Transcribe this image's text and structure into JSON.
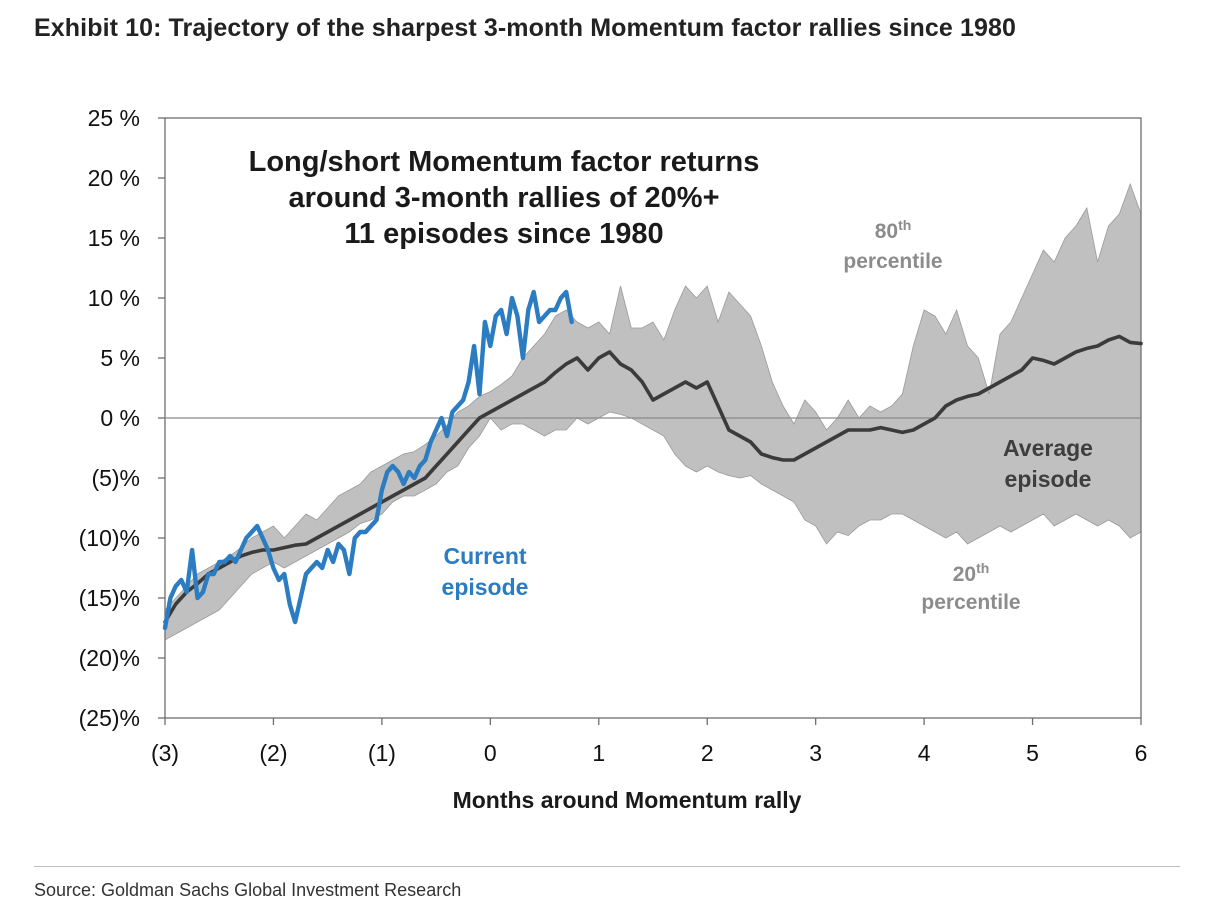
{
  "title": "Exhibit 10: Trajectory of the sharpest 3-month Momentum factor rallies since 1980",
  "source": "Source: Goldman Sachs Global Investment Research",
  "chart_data": {
    "type": "area",
    "xlabel": "Months around Momentum rally",
    "ylabel": "",
    "xlim": [
      -3,
      6
    ],
    "ylim": [
      -25,
      25
    ],
    "x_ticks": [
      -3,
      -2,
      -1,
      0,
      1,
      2,
      3,
      4,
      5,
      6
    ],
    "x_tick_labels": [
      "(3)",
      "(2)",
      "(1)",
      "0",
      "1",
      "2",
      "3",
      "4",
      "5",
      "6"
    ],
    "y_ticks": [
      25,
      20,
      15,
      10,
      5,
      0,
      -5,
      -10,
      -15,
      -20,
      -25
    ],
    "y_tick_labels": [
      "25 %",
      "20 %",
      "15 %",
      "10 %",
      "5 %",
      "0 %",
      "(5)%",
      "(10)%",
      "(15)%",
      "(20)%",
      "(25)%"
    ],
    "grid": false,
    "zero_line": true,
    "annotations": {
      "headline": [
        "Long/short Momentum factor returns",
        "around 3-month rallies of 20%+",
        "11 episodes since 1980"
      ],
      "p80": {
        "main": "80",
        "sup": "th",
        "rest": "percentile"
      },
      "p20": {
        "main": "20",
        "sup": "th",
        "rest": "percentile"
      },
      "average": [
        "Average",
        "episode"
      ],
      "current": [
        "Current",
        "episode"
      ]
    },
    "colors": {
      "band": "#c0c0c0",
      "average": "#3b3b3b",
      "current": "#2b7cc0",
      "axis": "#555555"
    },
    "series": [
      {
        "name": "80th percentile",
        "x": [
          -3,
          -2.9,
          -2.8,
          -2.7,
          -2.6,
          -2.5,
          -2.4,
          -2.3,
          -2.2,
          -2.1,
          -2,
          -1.9,
          -1.8,
          -1.7,
          -1.6,
          -1.5,
          -1.4,
          -1.3,
          -1.2,
          -1.1,
          -1,
          -0.9,
          -0.8,
          -0.7,
          -0.6,
          -0.5,
          -0.4,
          -0.3,
          -0.2,
          -0.1,
          0,
          0.1,
          0.2,
          0.3,
          0.4,
          0.5,
          0.6,
          0.7,
          0.8,
          0.9,
          1,
          1.1,
          1.2,
          1.3,
          1.4,
          1.5,
          1.6,
          1.7,
          1.8,
          1.9,
          2,
          2.1,
          2.2,
          2.3,
          2.4,
          2.5,
          2.6,
          2.7,
          2.8,
          2.9,
          3,
          3.1,
          3.2,
          3.3,
          3.4,
          3.5,
          3.6,
          3.7,
          3.8,
          3.9,
          4,
          4.1,
          4.2,
          4.3,
          4.4,
          4.5,
          4.6,
          4.7,
          4.8,
          4.9,
          5,
          5.1,
          5.2,
          5.3,
          5.4,
          5.5,
          5.6,
          5.7,
          5.8,
          5.9,
          6
        ],
        "values": [
          -16.0,
          -15.0,
          -14.0,
          -13.0,
          -12.5,
          -12.0,
          -11.5,
          -10.8,
          -10.0,
          -9.5,
          -9.0,
          -10.0,
          -9.0,
          -8.0,
          -8.5,
          -7.5,
          -6.5,
          -6.0,
          -5.5,
          -4.5,
          -4.0,
          -3.5,
          -3.0,
          -2.8,
          -2.2,
          -1.5,
          -0.6,
          0.5,
          1.0,
          1.8,
          2.2,
          2.8,
          3.5,
          5.0,
          6.0,
          7.0,
          8.5,
          9.0,
          8.0,
          7.5,
          8.0,
          7.0,
          11.0,
          7.5,
          7.5,
          8.0,
          6.5,
          9.0,
          11.0,
          10.0,
          11.0,
          8.0,
          10.5,
          9.5,
          8.5,
          6.0,
          3.0,
          1.0,
          -0.5,
          1.5,
          0.5,
          -1.0,
          0.0,
          1.5,
          0.0,
          1.0,
          0.5,
          1.0,
          2.0,
          6.0,
          9.0,
          8.5,
          7.0,
          9.0,
          6.0,
          5.0,
          2.0,
          7.0,
          8.0,
          10.0,
          12.0,
          14.0,
          13.0,
          15.0,
          16.0,
          17.5,
          13.0,
          16.0,
          17.0,
          19.5,
          17.0
        ]
      },
      {
        "name": "20th percentile",
        "x": [
          -3,
          -2.9,
          -2.8,
          -2.7,
          -2.6,
          -2.5,
          -2.4,
          -2.3,
          -2.2,
          -2.1,
          -2,
          -1.9,
          -1.8,
          -1.7,
          -1.6,
          -1.5,
          -1.4,
          -1.3,
          -1.2,
          -1.1,
          -1,
          -0.9,
          -0.8,
          -0.7,
          -0.6,
          -0.5,
          -0.4,
          -0.3,
          -0.2,
          -0.1,
          0,
          0.1,
          0.2,
          0.3,
          0.4,
          0.5,
          0.6,
          0.7,
          0.8,
          0.9,
          1,
          1.1,
          1.2,
          1.3,
          1.4,
          1.5,
          1.6,
          1.7,
          1.8,
          1.9,
          2,
          2.1,
          2.2,
          2.3,
          2.4,
          2.5,
          2.6,
          2.7,
          2.8,
          2.9,
          3,
          3.1,
          3.2,
          3.3,
          3.4,
          3.5,
          3.6,
          3.7,
          3.8,
          3.9,
          4,
          4.1,
          4.2,
          4.3,
          4.4,
          4.5,
          4.6,
          4.7,
          4.8,
          4.9,
          5,
          5.1,
          5.2,
          5.3,
          5.4,
          5.5,
          5.6,
          5.7,
          5.8,
          5.9,
          6
        ],
        "values": [
          -18.5,
          -18.0,
          -17.5,
          -17.0,
          -16.5,
          -16.0,
          -15.0,
          -14.0,
          -13.0,
          -12.5,
          -12.0,
          -12.5,
          -12.0,
          -11.5,
          -11.0,
          -10.5,
          -10.0,
          -9.5,
          -8.8,
          -8.5,
          -8.0,
          -7.0,
          -6.5,
          -6.5,
          -6.0,
          -5.5,
          -4.5,
          -4.0,
          -2.5,
          -1.5,
          0.0,
          -1.0,
          -0.5,
          -0.5,
          -1.0,
          -1.5,
          -1.0,
          -1.0,
          0.0,
          -0.5,
          0.0,
          0.5,
          0.3,
          0.0,
          -0.5,
          -1.0,
          -1.5,
          -3.0,
          -4.0,
          -4.5,
          -4.0,
          -4.5,
          -4.8,
          -5.0,
          -4.8,
          -5.5,
          -6.0,
          -6.5,
          -7.0,
          -8.5,
          -9.0,
          -10.5,
          -9.5,
          -9.8,
          -9.0,
          -8.5,
          -8.5,
          -8.0,
          -8.0,
          -8.5,
          -9.0,
          -9.5,
          -10.0,
          -9.5,
          -10.5,
          -10.0,
          -9.5,
          -9.0,
          -9.5,
          -9.0,
          -8.5,
          -8.0,
          -9.0,
          -8.5,
          -8.0,
          -8.5,
          -9.0,
          -8.5,
          -9.0,
          -10.0,
          -9.5
        ]
      },
      {
        "name": "Average episode",
        "x": [
          -3,
          -2.9,
          -2.8,
          -2.7,
          -2.6,
          -2.5,
          -2.4,
          -2.3,
          -2.2,
          -2.1,
          -2,
          -1.9,
          -1.8,
          -1.7,
          -1.6,
          -1.5,
          -1.4,
          -1.3,
          -1.2,
          -1.1,
          -1,
          -0.9,
          -0.8,
          -0.7,
          -0.6,
          -0.5,
          -0.4,
          -0.3,
          -0.2,
          -0.1,
          0,
          0.1,
          0.2,
          0.3,
          0.4,
          0.5,
          0.6,
          0.7,
          0.8,
          0.9,
          1,
          1.1,
          1.2,
          1.3,
          1.4,
          1.5,
          1.6,
          1.7,
          1.8,
          1.9,
          2,
          2.1,
          2.2,
          2.3,
          2.4,
          2.5,
          2.6,
          2.7,
          2.8,
          2.9,
          3,
          3.1,
          3.2,
          3.3,
          3.4,
          3.5,
          3.6,
          3.7,
          3.8,
          3.9,
          4,
          4.1,
          4.2,
          4.3,
          4.4,
          4.5,
          4.6,
          4.7,
          4.8,
          4.9,
          5,
          5.1,
          5.2,
          5.3,
          5.4,
          5.5,
          5.6,
          5.7,
          5.8,
          5.9,
          6
        ],
        "values": [
          -17.0,
          -15.5,
          -14.5,
          -13.8,
          -13.0,
          -12.5,
          -12.0,
          -11.5,
          -11.2,
          -11.0,
          -11.0,
          -10.8,
          -10.6,
          -10.5,
          -10.0,
          -9.5,
          -9.0,
          -8.5,
          -8.0,
          -7.5,
          -7.0,
          -6.5,
          -6.0,
          -5.5,
          -5.0,
          -4.0,
          -3.0,
          -2.0,
          -1.0,
          0.0,
          0.5,
          1.0,
          1.5,
          2.0,
          2.5,
          3.0,
          3.8,
          4.5,
          5.0,
          4.0,
          5.0,
          5.5,
          4.5,
          4.0,
          3.0,
          1.5,
          2.0,
          2.5,
          3.0,
          2.5,
          3.0,
          1.0,
          -1.0,
          -1.5,
          -2.0,
          -3.0,
          -3.3,
          -3.5,
          -3.5,
          -3.0,
          -2.5,
          -2.0,
          -1.5,
          -1.0,
          -1.0,
          -1.0,
          -0.8,
          -1.0,
          -1.2,
          -1.0,
          -0.5,
          0.0,
          1.0,
          1.5,
          1.8,
          2.0,
          2.5,
          3.0,
          3.5,
          4.0,
          5.0,
          4.8,
          4.5,
          5.0,
          5.5,
          5.8,
          6.0,
          6.5,
          6.8,
          6.3,
          6.2
        ]
      },
      {
        "name": "Current episode",
        "x": [
          -3.0,
          -2.95,
          -2.9,
          -2.85,
          -2.8,
          -2.75,
          -2.7,
          -2.65,
          -2.6,
          -2.55,
          -2.5,
          -2.45,
          -2.4,
          -2.35,
          -2.3,
          -2.25,
          -2.2,
          -2.15,
          -2.1,
          -2.05,
          -2.0,
          -1.95,
          -1.9,
          -1.85,
          -1.8,
          -1.75,
          -1.7,
          -1.65,
          -1.6,
          -1.55,
          -1.5,
          -1.45,
          -1.4,
          -1.35,
          -1.3,
          -1.25,
          -1.2,
          -1.15,
          -1.1,
          -1.05,
          -1.0,
          -0.95,
          -0.9,
          -0.85,
          -0.8,
          -0.75,
          -0.7,
          -0.65,
          -0.6,
          -0.55,
          -0.5,
          -0.45,
          -0.4,
          -0.35,
          -0.3,
          -0.25,
          -0.2,
          -0.15,
          -0.1,
          -0.05,
          0.0,
          0.05,
          0.1,
          0.15,
          0.2,
          0.25,
          0.3,
          0.35,
          0.4,
          0.45,
          0.5,
          0.55,
          0.6,
          0.65,
          0.7,
          0.75
        ],
        "values": [
          -17.5,
          -15.0,
          -14.0,
          -13.5,
          -14.5,
          -11.0,
          -15.0,
          -14.5,
          -13.0,
          -13.0,
          -12.0,
          -12.0,
          -11.5,
          -12.0,
          -11.0,
          -10.0,
          -9.5,
          -9.0,
          -10.0,
          -11.0,
          -12.5,
          -13.5,
          -13.0,
          -15.5,
          -17.0,
          -15.0,
          -13.0,
          -12.5,
          -12.0,
          -12.5,
          -11.0,
          -12.0,
          -10.5,
          -11.0,
          -13.0,
          -10.0,
          -9.5,
          -9.5,
          -9.0,
          -8.5,
          -6.0,
          -4.5,
          -4.0,
          -4.5,
          -5.5,
          -4.5,
          -5.0,
          -4.0,
          -3.5,
          -2.0,
          -1.0,
          0.0,
          -1.5,
          0.5,
          1.0,
          1.5,
          3.0,
          6.0,
          2.0,
          8.0,
          6.0,
          8.5,
          9.0,
          7.0,
          10.0,
          8.5,
          5.0,
          9.0,
          10.5,
          8.0,
          8.5,
          9.0,
          9.0,
          10.0,
          10.5,
          8.0
        ]
      }
    ]
  }
}
